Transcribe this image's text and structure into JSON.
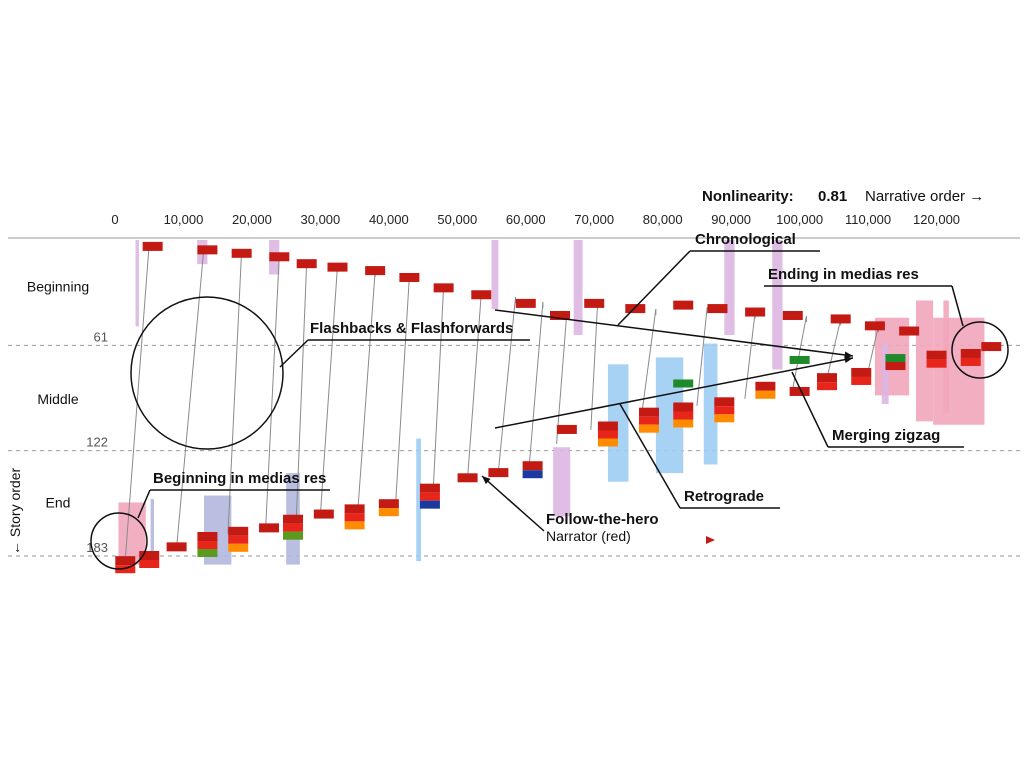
{
  "header": {
    "nonlinearity_label": "Nonlinearity:",
    "nonlinearity_value": "0.81",
    "x_axis_label": "Narrative order →"
  },
  "y_axis_label": "← Story order",
  "colors": {
    "narrator": "#c41a14",
    "red_bright": "#e8251b",
    "orange": "#ff8c00",
    "green": "#5a9a1e",
    "dark_green": "#1e8a2a",
    "navy": "#1a3aa0",
    "pink": "#f2a6bb",
    "light_purple": "#dcb6e2",
    "lavender": "#b3b8de",
    "light_blue": "#9fcdf2",
    "connector": "#8a8a8a",
    "dashed": "#9a9a9a"
  },
  "chart_data": {
    "type": "scatter",
    "x_label": "Narrative order",
    "y_label": "Story order",
    "xlim": [
      0,
      130000
    ],
    "ylim": [
      0,
      183
    ],
    "x_ticks": [
      "0",
      "10,000",
      "20,000",
      "30,000",
      "40,000",
      "50,000",
      "60,000",
      "70,000",
      "80,000",
      "90,000",
      "100,000",
      "110,000",
      "120,000"
    ],
    "x_tick_values": [
      0,
      10000,
      20000,
      30000,
      40000,
      50000,
      60000,
      70000,
      80000,
      90000,
      100000,
      110000,
      120000
    ],
    "y_ticks": [
      "61",
      "122",
      "183"
    ],
    "y_tick_values": [
      61,
      122,
      183
    ],
    "y_reversed": true,
    "sections": [
      {
        "name": "Beginning",
        "y": 27
      },
      {
        "name": "Middle",
        "y": 92
      },
      {
        "name": "End",
        "y": 152
      }
    ],
    "legend": "none",
    "series": [
      {
        "name": "Narrator (red)",
        "points": [
          [
            1500,
            186
          ],
          [
            5000,
            183
          ],
          [
            9000,
            178
          ],
          [
            13500,
            172
          ],
          [
            18000,
            169
          ],
          [
            22500,
            167
          ],
          [
            26000,
            162
          ],
          [
            30500,
            159
          ],
          [
            35000,
            156
          ],
          [
            40000,
            153
          ],
          [
            46000,
            144
          ],
          [
            51500,
            138
          ],
          [
            56000,
            135
          ],
          [
            61000,
            131
          ],
          [
            66000,
            110
          ],
          [
            72000,
            108
          ],
          [
            78000,
            100
          ],
          [
            83000,
            97
          ],
          [
            89000,
            94
          ],
          [
            95000,
            85
          ],
          [
            100000,
            88
          ],
          [
            104000,
            80
          ],
          [
            109000,
            77
          ],
          [
            114000,
            73
          ],
          [
            120000,
            67
          ],
          [
            125000,
            66
          ],
          [
            128000,
            62
          ],
          [
            5500,
            4
          ],
          [
            13500,
            6
          ],
          [
            18500,
            8
          ],
          [
            24000,
            10
          ],
          [
            28000,
            14
          ],
          [
            32500,
            16
          ],
          [
            38000,
            18
          ],
          [
            43000,
            22
          ],
          [
            48000,
            28
          ],
          [
            53500,
            32
          ],
          [
            60000,
            37
          ],
          [
            65000,
            44
          ],
          [
            70000,
            37
          ],
          [
            76000,
            40
          ],
          [
            83000,
            38
          ],
          [
            88000,
            40
          ],
          [
            93500,
            42
          ],
          [
            99000,
            44
          ],
          [
            106000,
            46
          ],
          [
            111000,
            50
          ],
          [
            116000,
            53
          ]
        ]
      }
    ]
  },
  "annotations": {
    "flashbacks": "Flashbacks & Flashforwards",
    "chronological": "Chronological",
    "ending_medias_res": "Ending in medias res",
    "merging_zigzag": "Merging zigzag",
    "beginning_medias_res": "Beginning in medias res",
    "retrograde": "Retrograde",
    "follow_the_hero": "Follow-the-hero",
    "narrator_note": "Narrator (red)"
  }
}
